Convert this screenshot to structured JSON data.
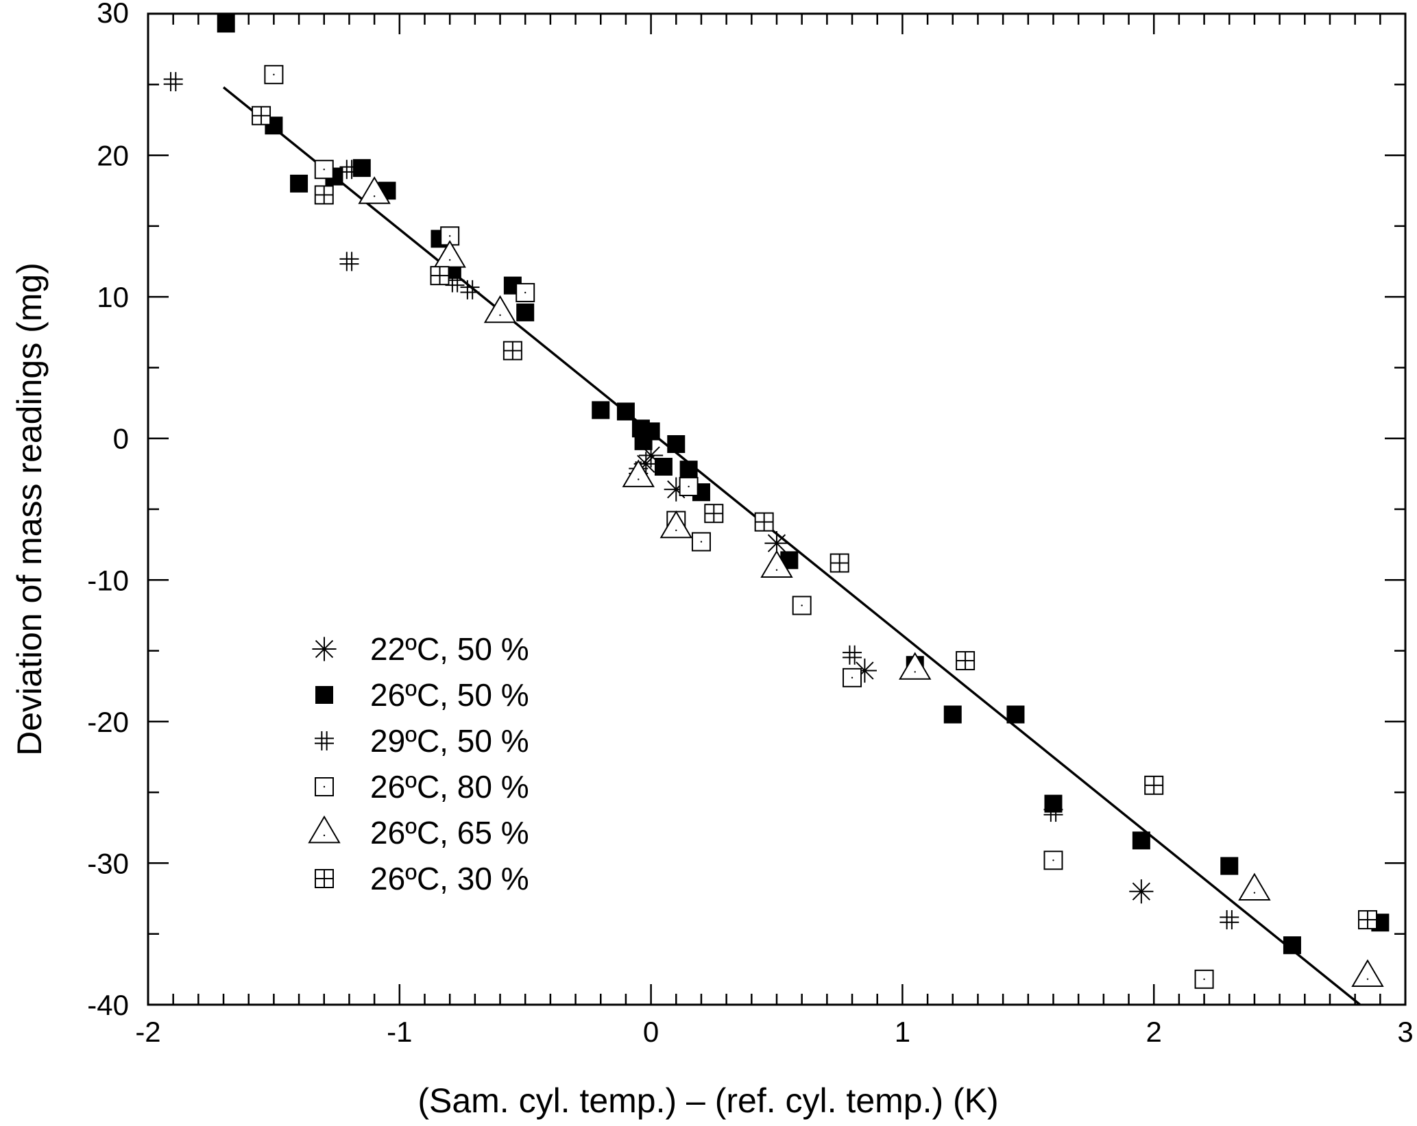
{
  "chart_data": {
    "type": "scatter",
    "title": "",
    "xlabel": "(Sam. cyl. temp.) – (ref. cyl. temp.) (K)",
    "ylabel": "Deviation of mass readings (mg)",
    "xlim": [
      -2,
      3
    ],
    "ylim": [
      -40,
      30
    ],
    "x_ticks": [
      -2,
      -1,
      0,
      1,
      2,
      3
    ],
    "y_ticks": [
      -40,
      -30,
      -20,
      -10,
      0,
      10,
      20,
      30
    ],
    "x_tick_labels": [
      "-2",
      "-1",
      "0",
      "1",
      "2",
      "3"
    ],
    "y_tick_labels": [
      "-40",
      "-30",
      "-20",
      "-10",
      "0",
      "10",
      "20",
      "30"
    ],
    "grid": false,
    "legend_position": "lower-left",
    "fit_line": {
      "x": [
        -1.7,
        2.82
      ],
      "y": [
        24.8,
        -40
      ]
    },
    "series": [
      {
        "name": "22ºC, 50 %",
        "marker": "asterisk",
        "x": [
          0.1,
          0.5,
          0.85,
          1.95,
          -0.02,
          0.0
        ],
        "y": [
          -3.6,
          -7.4,
          -16.4,
          -32,
          -1.8,
          -1.2
        ]
      },
      {
        "name": "26ºC, 50 %",
        "marker": "filled-square",
        "x": [
          -1.69,
          -1.5,
          -1.4,
          -1.26,
          -1.15,
          -1.05,
          -0.84,
          -0.79,
          -0.55,
          -0.5,
          -0.2,
          -0.1,
          -0.04,
          -0.03,
          0.0,
          0.05,
          0.1,
          0.15,
          0.2,
          0.55,
          1.05,
          1.2,
          1.45,
          1.6,
          1.95,
          2.3,
          2.55,
          2.9
        ],
        "y": [
          29.3,
          22.1,
          18.0,
          18.5,
          19.1,
          17.5,
          14.1,
          11.9,
          10.8,
          8.9,
          2.0,
          1.9,
          0.7,
          -0.2,
          0.5,
          -2.0,
          -0.4,
          -2.2,
          -3.8,
          -8.6,
          -16.0,
          -19.5,
          -19.5,
          -25.8,
          -28.4,
          -30.2,
          -35.8,
          -34.2
        ]
      },
      {
        "name": "29ºC, 50 %",
        "marker": "hash",
        "x": [
          -1.9,
          -1.2,
          -1.2,
          -0.78,
          -0.72,
          -0.05,
          0.8,
          1.6,
          2.3
        ],
        "y": [
          25.2,
          19.0,
          12.5,
          11.0,
          10.5,
          -2.3,
          -15.3,
          -26.4,
          -34.0
        ]
      },
      {
        "name": "26ºC, 80 %",
        "marker": "open-square",
        "x": [
          -1.5,
          -1.3,
          -0.8,
          -0.5,
          0.1,
          0.2,
          0.6,
          0.8,
          1.6,
          2.2,
          0.15
        ],
        "y": [
          25.7,
          19.0,
          14.3,
          10.3,
          -5.8,
          -7.3,
          -11.8,
          -16.9,
          -29.8,
          -38.2,
          -3.4
        ]
      },
      {
        "name": "26ºC, 65 %",
        "marker": "open-triangle",
        "x": [
          -1.1,
          -0.8,
          -0.6,
          -0.05,
          0.1,
          0.5,
          1.05,
          2.4,
          2.85
        ],
        "y": [
          17.3,
          12.8,
          8.9,
          -2.7,
          -6.3,
          -9.1,
          -16.3,
          -31.9,
          -38.0
        ]
      },
      {
        "name": "26ºC, 30 %",
        "marker": "crossed-square",
        "x": [
          -1.55,
          -1.3,
          -0.84,
          -0.55,
          0.25,
          0.45,
          0.75,
          1.25,
          2.0,
          2.85
        ],
        "y": [
          22.8,
          17.2,
          11.5,
          6.2,
          -5.3,
          -5.9,
          -8.8,
          -15.7,
          -24.5,
          -34.0
        ]
      }
    ]
  }
}
